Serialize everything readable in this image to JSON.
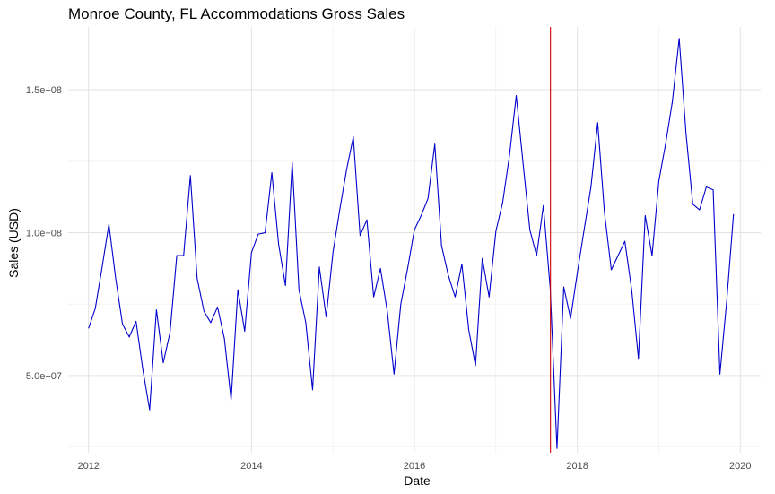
{
  "chart_data": {
    "type": "line",
    "title": "Monroe County, FL Accommodations Gross Sales",
    "xlabel": "Date",
    "ylabel": "Sales (USD)",
    "xlim": [
      2011.75,
      2020.25
    ],
    "ylim": [
      23000000,
      172000000
    ],
    "x_ticks": [
      2012,
      2014,
      2016,
      2018,
      2020
    ],
    "y_ticks": [
      50000000,
      100000000,
      150000000
    ],
    "y_tick_labels": [
      "5.0e+07",
      "1.0e+08",
      "1.5e+08"
    ],
    "grid": true,
    "line_color": "#0000cc",
    "vline": {
      "x": 2017.67,
      "color": "#cc0000"
    },
    "series": [
      {
        "x": [
          2012.0,
          2012.083,
          2012.167,
          2012.25,
          2012.333,
          2012.417,
          2012.5,
          2012.583,
          2012.667,
          2012.75,
          2012.833,
          2012.917,
          2013.0,
          2013.083,
          2013.167,
          2013.25,
          2013.333,
          2013.417,
          2013.5,
          2013.583,
          2013.667,
          2013.75,
          2013.833,
          2013.917,
          2014.0,
          2014.083,
          2014.167,
          2014.25,
          2014.333,
          2014.417,
          2014.5,
          2014.583,
          2014.667,
          2014.75,
          2014.833,
          2014.917,
          2015.0,
          2015.083,
          2015.167,
          2015.25,
          2015.333,
          2015.417,
          2015.5,
          2015.583,
          2015.667,
          2015.75,
          2015.833,
          2015.917,
          2016.0,
          2016.083,
          2016.167,
          2016.25,
          2016.333,
          2016.417,
          2016.5,
          2016.583,
          2016.667,
          2016.75,
          2016.833,
          2016.917,
          2017.0,
          2017.083,
          2017.167,
          2017.25,
          2017.333,
          2017.417,
          2017.5,
          2017.583,
          2017.667,
          2017.75,
          2017.833,
          2017.917,
          2018.0,
          2018.083,
          2018.167,
          2018.25,
          2018.333,
          2018.417,
          2018.5,
          2018.583,
          2018.667,
          2018.75,
          2018.833,
          2018.917,
          2019.0,
          2019.083,
          2019.167,
          2019.25,
          2019.333,
          2019.417,
          2019.5,
          2019.583,
          2019.667,
          2019.75,
          2019.833,
          2019.917
        ],
        "values": [
          66500000,
          73500000,
          88000000,
          103000000,
          84000000,
          68000000,
          63500000,
          69000000,
          52000000,
          38000000,
          73000000,
          54500000,
          65000000,
          92000000,
          92000000,
          120000000,
          84000000,
          72500000,
          68500000,
          74000000,
          63000000,
          41500000,
          80000000,
          65500000,
          93000000,
          99500000,
          100000000,
          121000000,
          96000000,
          81500000,
          124500000,
          80000000,
          68500000,
          45000000,
          88000000,
          70500000,
          93000000,
          108000000,
          122000000,
          133500000,
          99000000,
          104500000,
          77500000,
          87500000,
          72500000,
          50500000,
          75000000,
          87500000,
          101000000,
          106000000,
          112000000,
          131000000,
          95500000,
          85000000,
          77500000,
          89000000,
          66000000,
          53500000,
          91000000,
          77500000,
          100500000,
          110500000,
          127000000,
          148000000,
          124500000,
          101000000,
          92000000,
          109500000,
          80500000,
          24500000,
          81000000,
          70000000,
          86000000,
          101000000,
          116000000,
          138500000,
          107000000,
          87000000,
          92000000,
          97000000,
          80000000,
          56000000,
          106000000,
          92000000,
          118000000,
          131000000,
          146000000,
          168000000,
          135000000,
          110000000,
          108000000,
          116000000,
          115000000,
          50500000,
          76000000,
          106500000
        ]
      }
    ]
  }
}
